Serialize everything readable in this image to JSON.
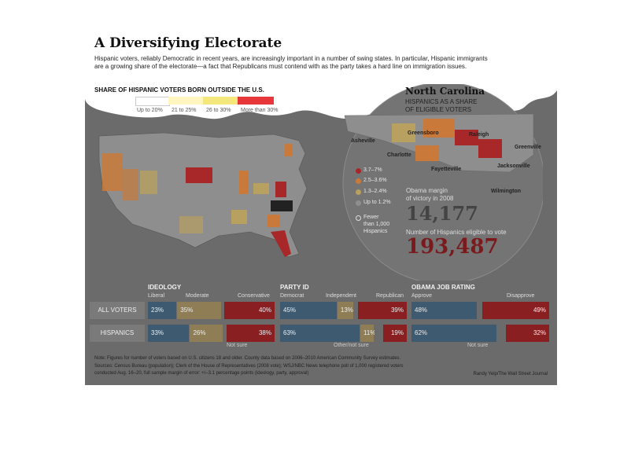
{
  "title": "A Diversifying Electorate",
  "dek": [
    "Hispanic voters, reliably Democratic in recent years, are increasingly important in a number of swing states. In particular, Hispanic immigrants",
    "are a growing share of the electorate—a fact that Republicans must contend with as the party takes a hard line on immigration issues."
  ],
  "legend": {
    "title": "SHARE OF HISPANIC VOTERS BORN OUTSIDE THE U.S.",
    "items": [
      {
        "label": "Up to 20%",
        "color": "#ffffff"
      },
      {
        "label": "21 to 25%",
        "color": "#fff6c0"
      },
      {
        "label": "26 to 30%",
        "color": "#f4e77e"
      },
      {
        "label": "More than 30%",
        "color": "#e8373b"
      }
    ]
  },
  "nc": {
    "title": "North Carolina",
    "subtitle": [
      "HISPANICS AS A SHARE",
      "OF ELIGIBLE VOTERS"
    ],
    "cities": [
      "Asheville",
      "Greensboro",
      "Raleigh",
      "Greenville",
      "Charlotte",
      "Fayetteville",
      "Jacksonville",
      "Wilmington"
    ],
    "legend": [
      {
        "label": "3.7–7%",
        "color": "#a8282a"
      },
      {
        "label": "2.5–3.6%",
        "color": "#c97a3a"
      },
      {
        "label": "1.3–2.4%",
        "color": "#b8a060"
      },
      {
        "label": "Up to 1.2%",
        "color": "#8e8e8e"
      },
      {
        "label": "Fewer",
        "color": ""
      },
      {
        "label": "than 1,000",
        "color": ""
      },
      {
        "label": "Hispanics",
        "color": ""
      }
    ],
    "margin_label": [
      "Obama margin",
      "of victory in 2008"
    ],
    "margin_value": "14,177",
    "eligible_label": "Number of Hispanics eligible to vote",
    "eligible_value": "193,487"
  },
  "chart_data": [
    {
      "type": "bar",
      "title": "IDEOLOGY",
      "stacked": true,
      "categories": [
        "ALL VOTERS",
        "HISPANICS"
      ],
      "series": [
        {
          "name": "Liberal",
          "values": [
            23,
            33
          ],
          "color": "#3d5a70"
        },
        {
          "name": "Moderate",
          "values": [
            35,
            26
          ],
          "color": "#8f7e55"
        },
        {
          "name": "Not sure",
          "values": [
            2,
            3
          ],
          "color": "#6b6b6b"
        },
        {
          "name": "Conservative",
          "values": [
            40,
            38
          ],
          "color": "#8a1f22"
        }
      ],
      "labels": [
        [
          "23%",
          "35%",
          "40%"
        ],
        [
          "33%",
          "26%",
          "38%"
        ]
      ]
    },
    {
      "type": "bar",
      "title": "PARTY ID",
      "stacked": true,
      "categories": [
        "ALL VOTERS",
        "HISPANICS"
      ],
      "series": [
        {
          "name": "Democrat",
          "values": [
            45,
            63
          ],
          "color": "#3d5a70"
        },
        {
          "name": "Independent",
          "values": [
            13,
            11
          ],
          "color": "#8f7e55"
        },
        {
          "name": "Other/not sure",
          "values": [
            3,
            7
          ],
          "color": "#6b6b6b"
        },
        {
          "name": "Republican",
          "values": [
            39,
            19
          ],
          "color": "#8a1f22"
        }
      ],
      "labels": [
        [
          "45%",
          "13%",
          "39%"
        ],
        [
          "63%",
          "11%",
          "19%"
        ]
      ]
    },
    {
      "type": "bar",
      "title": "OBAMA JOB RATING",
      "stacked": true,
      "categories": [
        "ALL VOTERS",
        "HISPANICS"
      ],
      "series": [
        {
          "name": "Approve",
          "values": [
            48,
            62
          ],
          "color": "#3d5a70"
        },
        {
          "name": "Not sure",
          "values": [
            3,
            6
          ],
          "color": "#6b6b6b"
        },
        {
          "name": "Disapprove",
          "values": [
            49,
            32
          ],
          "color": "#8a1f22"
        }
      ],
      "labels": [
        [
          "48%",
          "49%"
        ],
        [
          "62%",
          "32%"
        ]
      ]
    }
  ],
  "bars_text": {
    "row_labels": [
      "ALL VOTERS",
      "HISPANICS"
    ],
    "ideology_cols": [
      "Liberal",
      "Moderate",
      "Conservative"
    ],
    "party_cols": [
      "Democrat",
      "Independent",
      "Republican"
    ],
    "rating_cols": [
      "Approve",
      "Disapprove"
    ],
    "not_sure": "Not sure",
    "other_not_sure": "Other/not sure",
    "not_sure2": "Not sure"
  },
  "notes": [
    "Note: Figures for number of voters based on U.S. citizens 18 and older. County data based on 2006–2010 American Community Survey estimates.",
    "Sources: Census Bureau (population); Clerk of the House of Representatives (2008 vote); WSJ/NBC News telephone poll of 1,000 registered voters",
    "conducted Aug. 16–20, full sample margin of error: +/–3.1 percentage points (ideology, party, approval)"
  ],
  "credit": "Randy Yeip/The Wall Street Journal"
}
